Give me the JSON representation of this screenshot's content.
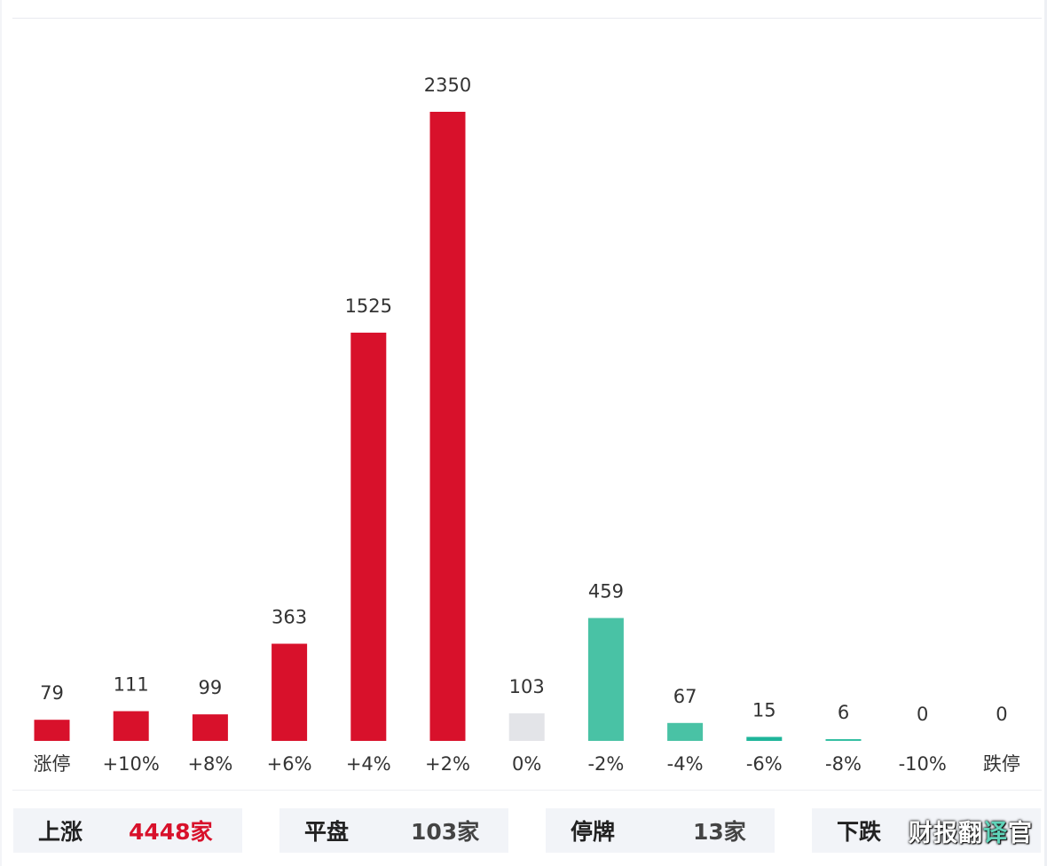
{
  "chart_data": {
    "type": "bar",
    "categories": [
      "涨停",
      "+10%",
      "+8%",
      "+6%",
      "+4%",
      "+2%",
      "0%",
      "-2%",
      "-4%",
      "-6%",
      "-8%",
      "-10%",
      "跌停"
    ],
    "values": [
      79,
      111,
      99,
      363,
      1525,
      2350,
      103,
      459,
      67,
      15,
      6,
      0,
      0
    ],
    "value_labels": [
      "79",
      "111",
      "99",
      "363",
      "1525",
      "2350",
      "103",
      "459",
      "67",
      "15",
      "6",
      "0",
      "0"
    ],
    "bar_colors": [
      "#d8112b",
      "#d8112b",
      "#d8112b",
      "#d8112b",
      "#d8112b",
      "#d8112b",
      "#e3e4e8",
      "#49c2a5",
      "#49c2a5",
      "#1fb59a",
      "#35bfa3",
      "#49c2a5",
      "#49c2a5"
    ],
    "ylim": [
      0,
      2350
    ],
    "grid": false,
    "legend": "none"
  },
  "summary": [
    {
      "label": "上涨",
      "value": "4448",
      "unit": "家",
      "color": "#d8112b"
    },
    {
      "label": "平盘",
      "value": "103",
      "unit": "家",
      "color": "#444444"
    },
    {
      "label": "停牌",
      "value": "13",
      "unit": "家",
      "color": "#444444"
    },
    {
      "label": "下跌",
      "value": "",
      "unit": "",
      "color": "#444444"
    }
  ],
  "watermark": {
    "part1": "财报翻",
    "part2": "译",
    "part3": "官"
  },
  "colors": {
    "up": "#d8112b",
    "down": "#49c2a5",
    "flat": "#e3e4e8"
  }
}
